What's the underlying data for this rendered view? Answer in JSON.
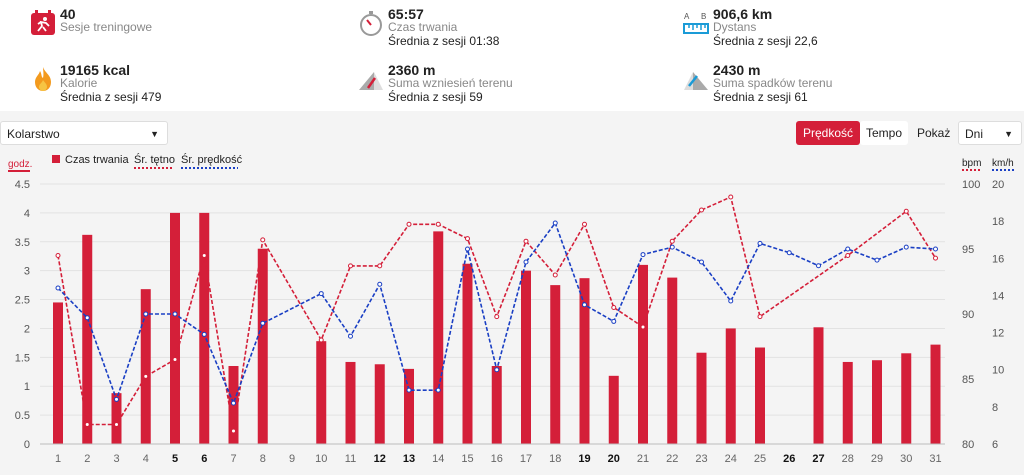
{
  "stats": [
    {
      "value": "40",
      "label": "Sesje treningowe",
      "sub": "",
      "icon": "calendar-runner-icon"
    },
    {
      "value": "65:57",
      "label": "Czas trwania",
      "sub": "Średnia z sesji 01:38",
      "icon": "stopwatch-icon"
    },
    {
      "value": "906,6 km",
      "label": "Dystans",
      "sub": "Średnia z sesji 22,6",
      "icon": "distance-ruler-icon"
    },
    {
      "value": "19165 kcal",
      "label": "Kalorie",
      "sub": "Średnia z sesji 479",
      "icon": "flame-icon"
    },
    {
      "value": "2360 m",
      "label": "Suma wzniesień terenu",
      "sub": "Średnia z sesji 59",
      "icon": "ascent-icon"
    },
    {
      "value": "2430 m",
      "label": "Suma spadków terenu",
      "sub": "Średnia z sesji 61",
      "icon": "descent-icon"
    }
  ],
  "controls": {
    "sport": "Kolarstwo",
    "speed_label": "Prędkość",
    "pace_label": "Tempo",
    "show_label": "Pokaż",
    "period": "Dni"
  },
  "colors": {
    "bar": "#d41f39",
    "hr": "#d41f39",
    "speed": "#1a3fc4",
    "accent": "#d41f39"
  },
  "chart_data": {
    "type": "bar",
    "categories": [
      "1",
      "2",
      "3",
      "4",
      "5",
      "6",
      "7",
      "8",
      "9",
      "10",
      "11",
      "12",
      "13",
      "14",
      "15",
      "16",
      "17",
      "18",
      "19",
      "20",
      "21",
      "22",
      "23",
      "24",
      "25",
      "26",
      "27",
      "28",
      "29",
      "30",
      "31"
    ],
    "bold_categories": [
      "5",
      "6",
      "12",
      "13",
      "19",
      "20",
      "26",
      "27"
    ],
    "units": {
      "left": "godz.",
      "right1": "bpm",
      "right2": "km/h"
    },
    "series": [
      {
        "name": "Czas trwania",
        "axis": "left",
        "values": [
          2.45,
          3.62,
          0.88,
          2.68,
          4.0,
          4.0,
          1.35,
          3.38,
          null,
          1.78,
          1.42,
          1.38,
          1.3,
          3.68,
          3.12,
          1.35,
          3.0,
          2.75,
          2.87,
          1.18,
          3.1,
          2.88,
          1.58,
          2.0,
          1.67,
          null,
          2.02,
          1.42,
          1.45,
          1.57,
          1.72
        ]
      },
      {
        "name": "Śr. tętno",
        "axis": "right1",
        "x": [
          1,
          2,
          3,
          4,
          5,
          6,
          7,
          8,
          10,
          11,
          12,
          13,
          14,
          15,
          16,
          17,
          18,
          19,
          20,
          21,
          22,
          23,
          24,
          25,
          28,
          30,
          31
        ],
        "values": [
          94.5,
          81.5,
          81.5,
          85.2,
          86.5,
          94.5,
          81.0,
          95.7,
          88.0,
          93.7,
          93.7,
          96.9,
          96.9,
          95.8,
          89.8,
          95.6,
          93.0,
          96.9,
          90.5,
          89.0,
          95.6,
          98.0,
          99.0,
          89.8,
          94.5,
          97.9,
          94.3
        ]
      },
      {
        "name": "Śr. prędkość",
        "axis": "right2",
        "x": [
          1,
          2,
          3,
          4,
          5,
          6,
          7,
          8,
          10,
          11,
          12,
          13,
          14,
          15,
          16,
          17,
          18,
          19,
          20,
          21,
          22,
          23,
          24,
          25,
          26,
          27,
          28,
          29,
          30,
          31
        ],
        "values": [
          14.4,
          12.8,
          8.4,
          13.0,
          13.0,
          11.9,
          8.2,
          12.5,
          14.1,
          11.8,
          14.6,
          8.9,
          8.9,
          16.5,
          10.0,
          15.8,
          17.9,
          13.5,
          12.6,
          16.2,
          16.6,
          15.8,
          13.7,
          16.8,
          16.3,
          15.6,
          16.5,
          15.9,
          16.6,
          16.5
        ]
      }
    ],
    "y_left": {
      "min": 0,
      "max": 4.5,
      "ticks": [
        "0",
        "0.5",
        "1",
        "1.5",
        "2",
        "2.5",
        "3",
        "3.5",
        "4",
        "4.5"
      ]
    },
    "y_right1": {
      "min": 80,
      "max": 100,
      "ticks": [
        "80",
        "85",
        "90",
        "95",
        "100"
      ]
    },
    "y_right2": {
      "min": 6,
      "max": 20,
      "ticks": [
        "6",
        "8",
        "10",
        "12",
        "14",
        "16",
        "18",
        "20"
      ]
    },
    "legend_position": "top-left",
    "grid": "horizontal"
  }
}
